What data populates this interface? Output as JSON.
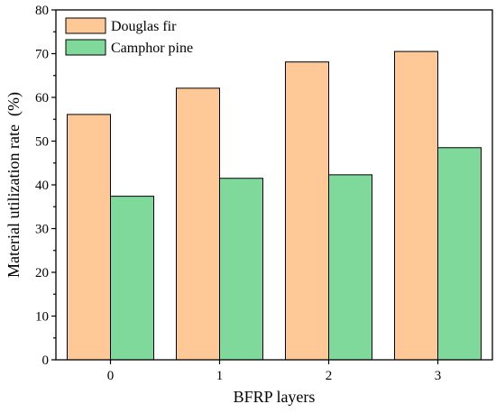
{
  "chart_data": {
    "type": "bar",
    "title": "",
    "xlabel": "BFRP layers",
    "ylabel": "Material utilization rate  (%)",
    "categories": [
      "0",
      "1",
      "2",
      "3"
    ],
    "ylim": [
      0,
      80
    ],
    "yticks": [
      0,
      10,
      20,
      30,
      40,
      50,
      60,
      70,
      80
    ],
    "grid": false,
    "legend_position": "top-left",
    "series": [
      {
        "name": "Douglas fir",
        "color": "#FFC896",
        "values": [
          56.1,
          62.1,
          68.1,
          70.5
        ]
      },
      {
        "name": "Camphor pine",
        "color": "#7FD99A",
        "values": [
          37.4,
          41.5,
          42.3,
          48.5
        ]
      }
    ]
  }
}
